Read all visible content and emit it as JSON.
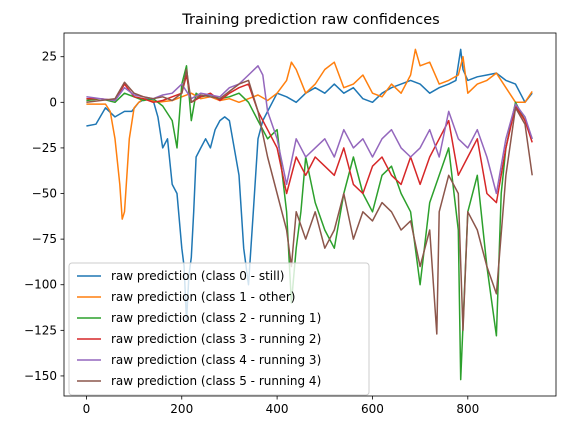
{
  "chart_data": {
    "type": "line",
    "title": "Training prediction raw confidences",
    "xlabel": "",
    "ylabel": "",
    "xlim": [
      -47,
      985
    ],
    "ylim": [
      -161,
      38
    ],
    "xticks": [
      0,
      200,
      400,
      600,
      800
    ],
    "yticks": [
      25,
      0,
      -25,
      -50,
      -75,
      -100,
      -125,
      -150
    ],
    "grid": false,
    "legend_position": "lower-left",
    "series": [
      {
        "name": "raw prediction (class 0 - still)",
        "color": "#1f77b4",
        "x": [
          0,
          20,
          40,
          60,
          80,
          95,
          110,
          125,
          140,
          150,
          160,
          170,
          180,
          190,
          200,
          205,
          210,
          215,
          220,
          225,
          230,
          240,
          250,
          260,
          270,
          280,
          290,
          300,
          310,
          320,
          330,
          340,
          350,
          360,
          370,
          380,
          400,
          420,
          440,
          460,
          480,
          500,
          520,
          540,
          560,
          580,
          600,
          620,
          640,
          660,
          680,
          700,
          720,
          740,
          760,
          775,
          785,
          790,
          800,
          820,
          840,
          860,
          880,
          900,
          920,
          935
        ],
        "values": [
          -13,
          -12,
          -3,
          -8,
          -5,
          -5,
          0,
          2,
          1,
          -8,
          -25,
          -20,
          -45,
          -50,
          -80,
          -90,
          -120,
          -95,
          -85,
          -60,
          -30,
          -25,
          -20,
          -25,
          -15,
          -10,
          -8,
          -10,
          -25,
          -40,
          -80,
          -100,
          -60,
          -20,
          -10,
          -5,
          5,
          3,
          0,
          5,
          8,
          5,
          10,
          5,
          8,
          2,
          0,
          5,
          8,
          10,
          12,
          10,
          5,
          8,
          10,
          12,
          29,
          18,
          12,
          14,
          15,
          16,
          12,
          10,
          0,
          5
        ]
      },
      {
        "name": "raw prediction (class 1 - other)",
        "color": "#ff7f0e",
        "x": [
          0,
          20,
          40,
          50,
          60,
          70,
          75,
          80,
          85,
          90,
          100,
          110,
          120,
          150,
          180,
          200,
          220,
          240,
          260,
          280,
          300,
          320,
          340,
          360,
          380,
          400,
          420,
          430,
          440,
          460,
          480,
          500,
          520,
          540,
          560,
          580,
          600,
          620,
          640,
          660,
          680,
          690,
          700,
          720,
          740,
          760,
          780,
          790,
          800,
          820,
          840,
          860,
          880,
          900,
          920,
          935
        ],
        "values": [
          -1,
          -1,
          -1,
          -5,
          -20,
          -45,
          -64,
          -60,
          -40,
          -20,
          -3,
          0,
          2,
          0,
          1,
          3,
          5,
          2,
          3,
          1,
          2,
          0,
          2,
          4,
          1,
          5,
          12,
          22,
          18,
          5,
          10,
          18,
          22,
          8,
          10,
          15,
          5,
          3,
          10,
          5,
          15,
          29,
          20,
          22,
          10,
          12,
          15,
          25,
          5,
          10,
          12,
          16,
          8,
          0,
          0,
          6
        ]
      },
      {
        "name": "raw prediction (class 2 - running 1)",
        "color": "#2ca02c",
        "x": [
          0,
          30,
          60,
          80,
          100,
          120,
          140,
          160,
          180,
          190,
          200,
          210,
          220,
          230,
          240,
          260,
          280,
          300,
          320,
          340,
          360,
          380,
          400,
          420,
          430,
          440,
          450,
          460,
          480,
          500,
          520,
          540,
          560,
          580,
          600,
          620,
          640,
          660,
          680,
          700,
          720,
          740,
          760,
          780,
          785,
          800,
          820,
          840,
          860,
          870,
          880,
          900,
          920,
          935
        ],
        "values": [
          1,
          2,
          0,
          5,
          3,
          1,
          2,
          -2,
          -10,
          -25,
          10,
          20,
          -10,
          5,
          3,
          4,
          2,
          3,
          5,
          0,
          -10,
          -20,
          -15,
          -60,
          -110,
          -80,
          -60,
          -30,
          -55,
          -70,
          -80,
          -50,
          -30,
          -50,
          -60,
          -40,
          -35,
          -50,
          -60,
          -100,
          -55,
          -40,
          -25,
          -70,
          -152,
          -60,
          -40,
          -90,
          -128,
          -50,
          -25,
          0,
          -10,
          -20
        ]
      },
      {
        "name": "raw prediction (class 3 - running 2)",
        "color": "#d62728",
        "x": [
          0,
          30,
          60,
          80,
          100,
          120,
          140,
          160,
          180,
          200,
          210,
          220,
          240,
          260,
          280,
          300,
          320,
          340,
          360,
          380,
          400,
          420,
          440,
          460,
          480,
          500,
          520,
          540,
          560,
          580,
          600,
          620,
          640,
          660,
          680,
          700,
          720,
          740,
          760,
          780,
          800,
          820,
          840,
          860,
          880,
          900,
          920,
          935
        ],
        "values": [
          2,
          2,
          1,
          10,
          3,
          2,
          0,
          1,
          3,
          5,
          15,
          0,
          3,
          5,
          1,
          5,
          8,
          10,
          -5,
          -15,
          -25,
          -50,
          -30,
          -40,
          -30,
          -35,
          -40,
          -25,
          -45,
          -50,
          -35,
          -30,
          -40,
          -45,
          -30,
          -45,
          -30,
          -20,
          -10,
          -40,
          -30,
          -20,
          -50,
          -55,
          -25,
          -2,
          -10,
          -22
        ]
      },
      {
        "name": "raw prediction (class 4 - running 3)",
        "color": "#9467bd",
        "x": [
          0,
          30,
          60,
          80,
          100,
          120,
          140,
          160,
          180,
          200,
          220,
          240,
          260,
          280,
          300,
          320,
          340,
          360,
          370,
          380,
          400,
          420,
          440,
          460,
          480,
          500,
          520,
          540,
          560,
          580,
          600,
          620,
          640,
          660,
          680,
          700,
          720,
          740,
          760,
          780,
          800,
          820,
          840,
          860,
          880,
          900,
          920,
          935
        ],
        "values": [
          3,
          2,
          1,
          8,
          4,
          3,
          2,
          4,
          5,
          10,
          2,
          5,
          4,
          3,
          8,
          10,
          15,
          20,
          15,
          -5,
          -20,
          -45,
          -20,
          -30,
          -25,
          -20,
          -30,
          -15,
          -25,
          -20,
          -30,
          -20,
          -15,
          -25,
          -30,
          -25,
          -15,
          -30,
          -5,
          -20,
          -25,
          -15,
          -30,
          -50,
          -20,
          -1,
          -8,
          -20
        ]
      },
      {
        "name": "raw prediction (class 5 - running 4)",
        "color": "#8c564b",
        "x": [
          0,
          30,
          60,
          80,
          100,
          120,
          140,
          160,
          180,
          200,
          210,
          220,
          240,
          260,
          280,
          300,
          320,
          340,
          360,
          380,
          400,
          420,
          430,
          440,
          460,
          480,
          500,
          520,
          540,
          560,
          580,
          600,
          620,
          640,
          660,
          680,
          700,
          720,
          735,
          740,
          760,
          780,
          790,
          800,
          820,
          840,
          860,
          880,
          900,
          920,
          935
        ],
        "values": [
          0,
          1,
          2,
          11,
          5,
          3,
          2,
          3,
          1,
          5,
          18,
          0,
          4,
          3,
          2,
          6,
          10,
          12,
          -5,
          -30,
          -50,
          -70,
          -90,
          -60,
          -75,
          -60,
          -80,
          -70,
          -50,
          -75,
          -60,
          -65,
          -55,
          -60,
          -70,
          -65,
          -90,
          -70,
          -127,
          -60,
          -40,
          -50,
          -125,
          -60,
          -70,
          -90,
          -105,
          -40,
          -3,
          -12,
          -40
        ]
      }
    ]
  }
}
